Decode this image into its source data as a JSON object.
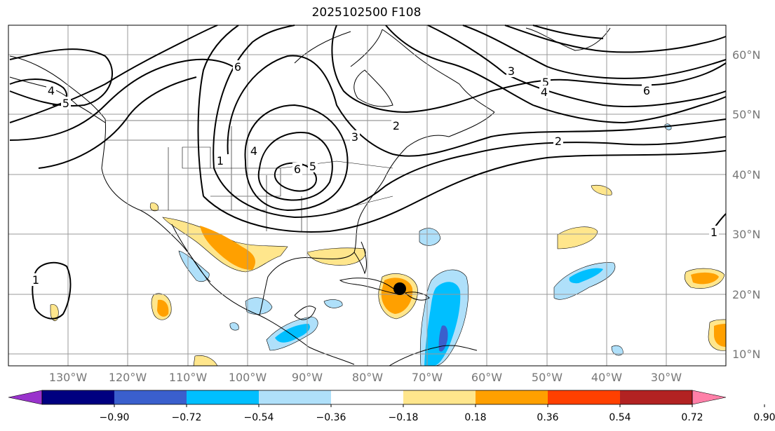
{
  "title": "2025102500 F108",
  "map": {
    "lon_ticks": [
      "130°W",
      "120°W",
      "110°W",
      "100°W",
      "90°W",
      "80°W",
      "70°W",
      "60°W",
      "50°W",
      "40°W",
      "30°W"
    ],
    "lat_ticks": [
      "60°N",
      "50°N",
      "40°N",
      "30°N",
      "20°N",
      "10°N"
    ],
    "contour_labels": [
      "6",
      "4",
      "5",
      "1",
      "4",
      "6",
      "5",
      "3",
      "2",
      "3",
      "5",
      "4",
      "6",
      "2",
      "1",
      "1"
    ]
  },
  "colorbar": {
    "colors": [
      "#9933cc",
      "#000080",
      "#3a5fcd",
      "#00bfff",
      "#afe0fa",
      "#ffffff",
      "#ffe68c",
      "#ffa000",
      "#ff4000",
      "#b22222",
      "#ff80a8"
    ],
    "ticks": [
      "−0.90",
      "−0.72",
      "−0.54",
      "−0.36",
      "−0.18",
      "0.18",
      "0.36",
      "0.54",
      "0.72",
      "0.90"
    ]
  },
  "colors": {
    "contour": "#000000",
    "coast": "#000000",
    "grid": "#999999",
    "tick_text": "#777777"
  }
}
